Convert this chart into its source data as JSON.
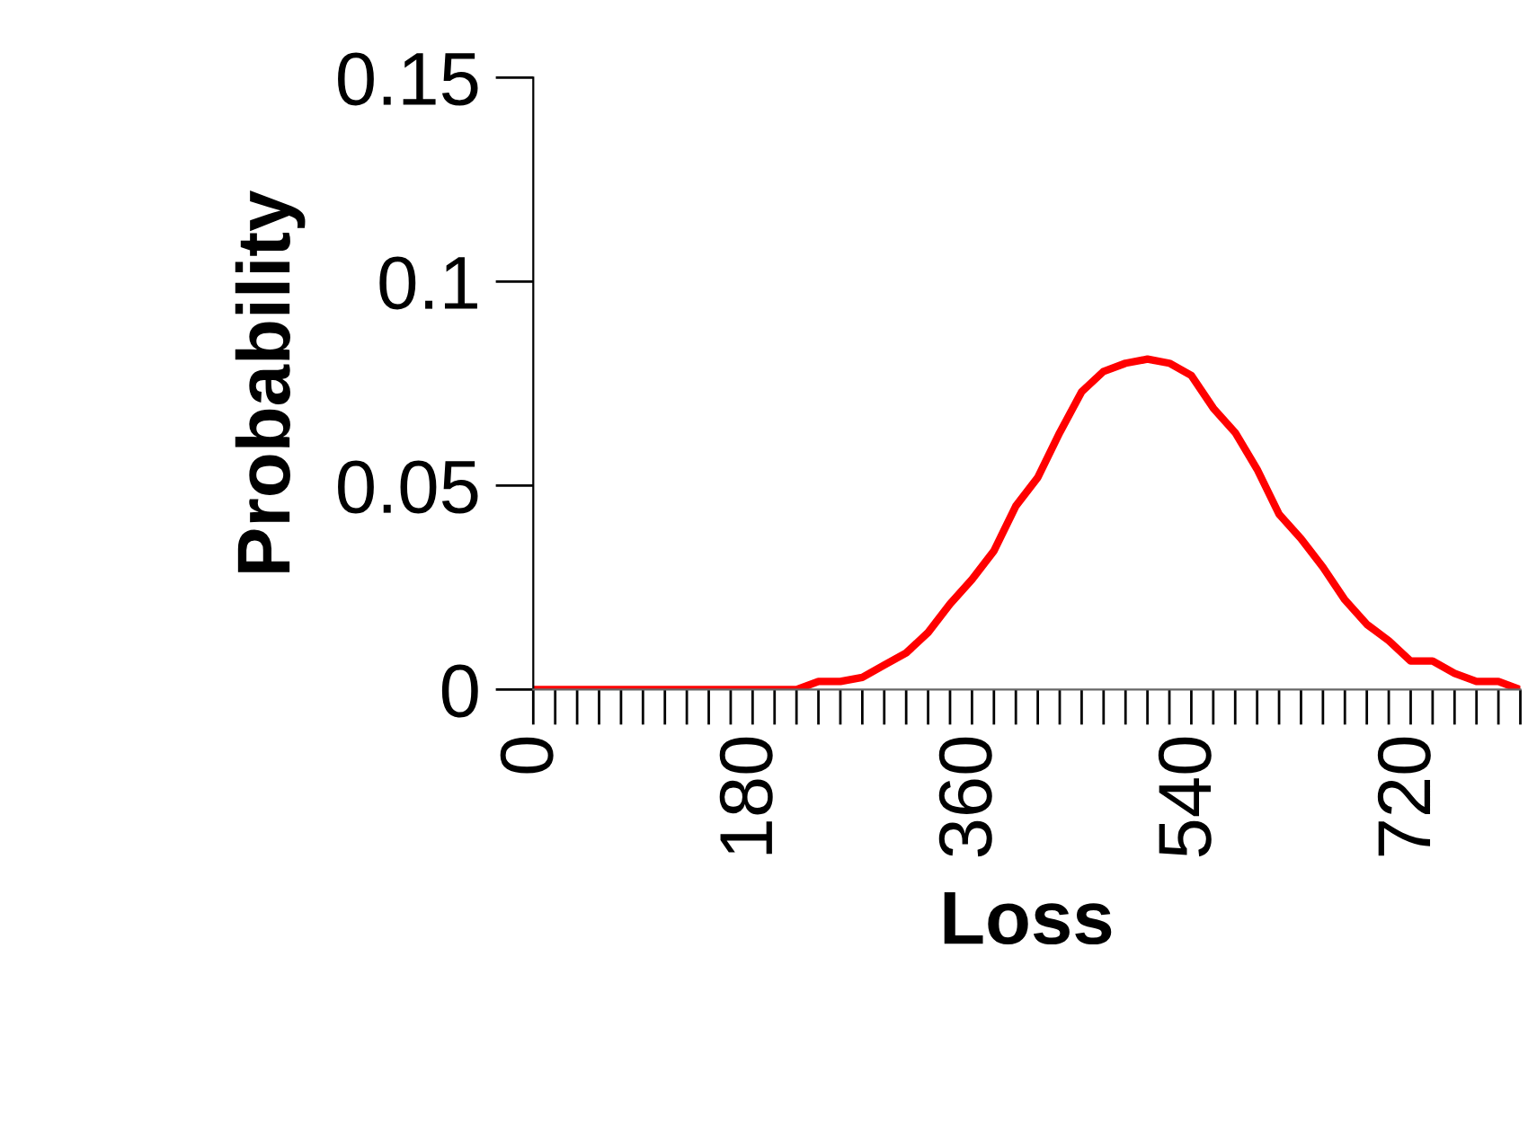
{
  "chart_data": {
    "type": "line",
    "xlabel": "Loss",
    "ylabel": "Probability",
    "x": [
      0,
      18,
      36,
      54,
      72,
      90,
      108,
      126,
      144,
      162,
      180,
      198,
      216,
      234,
      252,
      270,
      288,
      306,
      324,
      342,
      360,
      378,
      396,
      414,
      432,
      450,
      468,
      486,
      504,
      522,
      540,
      558,
      576,
      594,
      612,
      630,
      648,
      666,
      684,
      702,
      720,
      738,
      756,
      774,
      792,
      810
    ],
    "series": [
      {
        "color": "#ff0000",
        "values": [
          0,
          0,
          0,
          0,
          0,
          0,
          0,
          0,
          0,
          0,
          0,
          0,
          0,
          0.002,
          0.002,
          0.003,
          0.006,
          0.009,
          0.014,
          0.021,
          0.027,
          0.034,
          0.045,
          0.052,
          0.063,
          0.073,
          0.078,
          0.08,
          0.081,
          0.08,
          0.077,
          0.069,
          0.063,
          0.054,
          0.043,
          0.037,
          0.03,
          0.022,
          0.016,
          0.012,
          0.007,
          0.007,
          0.004,
          0.002,
          0.002,
          0
        ]
      }
    ],
    "xlim": [
      0,
      810
    ],
    "xticks": [
      0,
      180,
      360,
      540,
      720
    ],
    "ylim": [
      0,
      0.15
    ],
    "yticks": [
      0,
      0.05,
      0.1,
      0.15
    ],
    "grid": false,
    "legend": false,
    "marker": "none",
    "line_style": "solid"
  }
}
